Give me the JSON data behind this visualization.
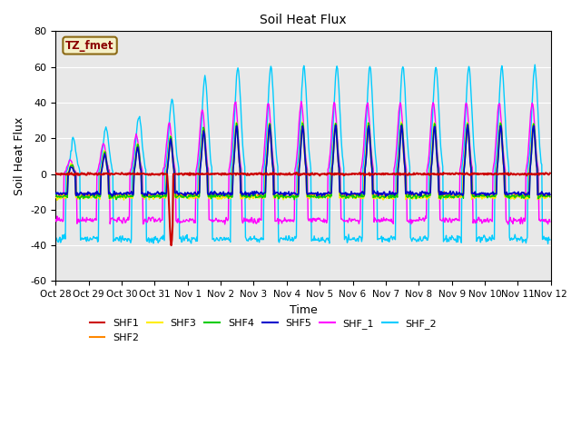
{
  "title": "Soil Heat Flux",
  "xlabel": "Time",
  "ylabel": "Soil Heat Flux",
  "ylim": [
    -60,
    80
  ],
  "yticks": [
    -60,
    -40,
    -20,
    0,
    20,
    40,
    60,
    80
  ],
  "background_color": "#e8e8e8",
  "annotation_text": "TZ_fmet",
  "annotation_box_color": "#f5f0c8",
  "annotation_border_color": "#8b6914",
  "series_colors": {
    "SHF1": "#cc0000",
    "SHF2": "#ff8800",
    "SHF3": "#ffee00",
    "SHF4": "#00cc00",
    "SHF5": "#0000cc",
    "SHF_1": "#ff00ff",
    "SHF_2": "#00ccff"
  },
  "tick_labels": [
    "Oct 28",
    "Oct 29",
    "Oct 30",
    "Oct 31",
    "Nov 1",
    "Nov 2",
    "Nov 3",
    "Nov 4",
    "Nov 5",
    "Nov 6",
    "Nov 7",
    "Nov 8",
    "Nov 9",
    "Nov 10",
    "Nov 11",
    "Nov 12"
  ],
  "legend_order": [
    "SHF1",
    "SHF2",
    "SHF3",
    "SHF4",
    "SHF5",
    "SHF_1",
    "SHF_2"
  ]
}
